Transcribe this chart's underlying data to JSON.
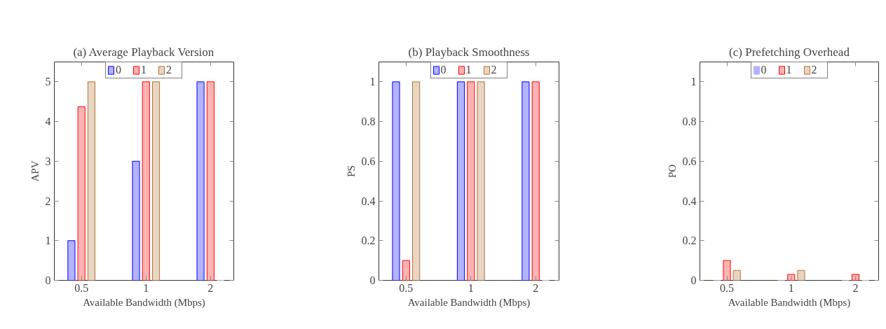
{
  "chart_data": [
    {
      "type": "bar",
      "title": "(a) Average Playback Version",
      "xlabel": "Available Bandwidth (Mbps)",
      "ylabel": "APV",
      "categories": [
        "0.5",
        "1",
        "2"
      ],
      "ylim": [
        0,
        5.5
      ],
      "yticks": [
        0,
        1,
        2,
        3,
        4,
        5
      ],
      "legend": "top",
      "grid": false,
      "series": [
        {
          "name": "0",
          "color": "#b3b3ff",
          "values": [
            1,
            3,
            5
          ]
        },
        {
          "name": "1",
          "color": "#ffb3b3",
          "values": [
            4.37,
            5,
            5
          ]
        },
        {
          "name": "2",
          "color": "#e8d5c3",
          "values": [
            5,
            5,
            0
          ]
        }
      ]
    },
    {
      "type": "bar",
      "title": "(b) Playback Smoothness",
      "xlabel": "Available Bandwidth (Mbps)",
      "ylabel": "PS",
      "categories": [
        "0.5",
        "1",
        "2"
      ],
      "ylim": [
        0,
        1.1
      ],
      "yticks": [
        0,
        0.2,
        0.4,
        0.6,
        0.8,
        1
      ],
      "legend": "top",
      "grid": false,
      "series": [
        {
          "name": "0",
          "color": "#b3b3ff",
          "values": [
            1,
            1,
            1
          ]
        },
        {
          "name": "1",
          "color": "#ffb3b3",
          "values": [
            0.1,
            1,
            1
          ]
        },
        {
          "name": "2",
          "color": "#e8d5c3",
          "values": [
            1,
            1,
            0
          ]
        }
      ]
    },
    {
      "type": "bar",
      "title": "(c) Prefetching Overhead",
      "xlabel": "Available Bandwidth (Mbps)",
      "ylabel": "PO",
      "categories": [
        "0.5",
        "1",
        "2"
      ],
      "ylim": [
        0,
        1.1
      ],
      "yticks": [
        0,
        0.2,
        0.4,
        0.6,
        0.8,
        1
      ],
      "legend": "top",
      "grid": false,
      "series": [
        {
          "name": "0",
          "color": "#b3b3ff",
          "values": [
            0,
            0,
            0
          ]
        },
        {
          "name": "1",
          "color": "#ffb3b3",
          "values": [
            0.1,
            0.03,
            0.03
          ]
        },
        {
          "name": "2",
          "color": "#e8d5c3",
          "values": [
            0.05,
            0.05,
            0
          ]
        }
      ]
    }
  ]
}
